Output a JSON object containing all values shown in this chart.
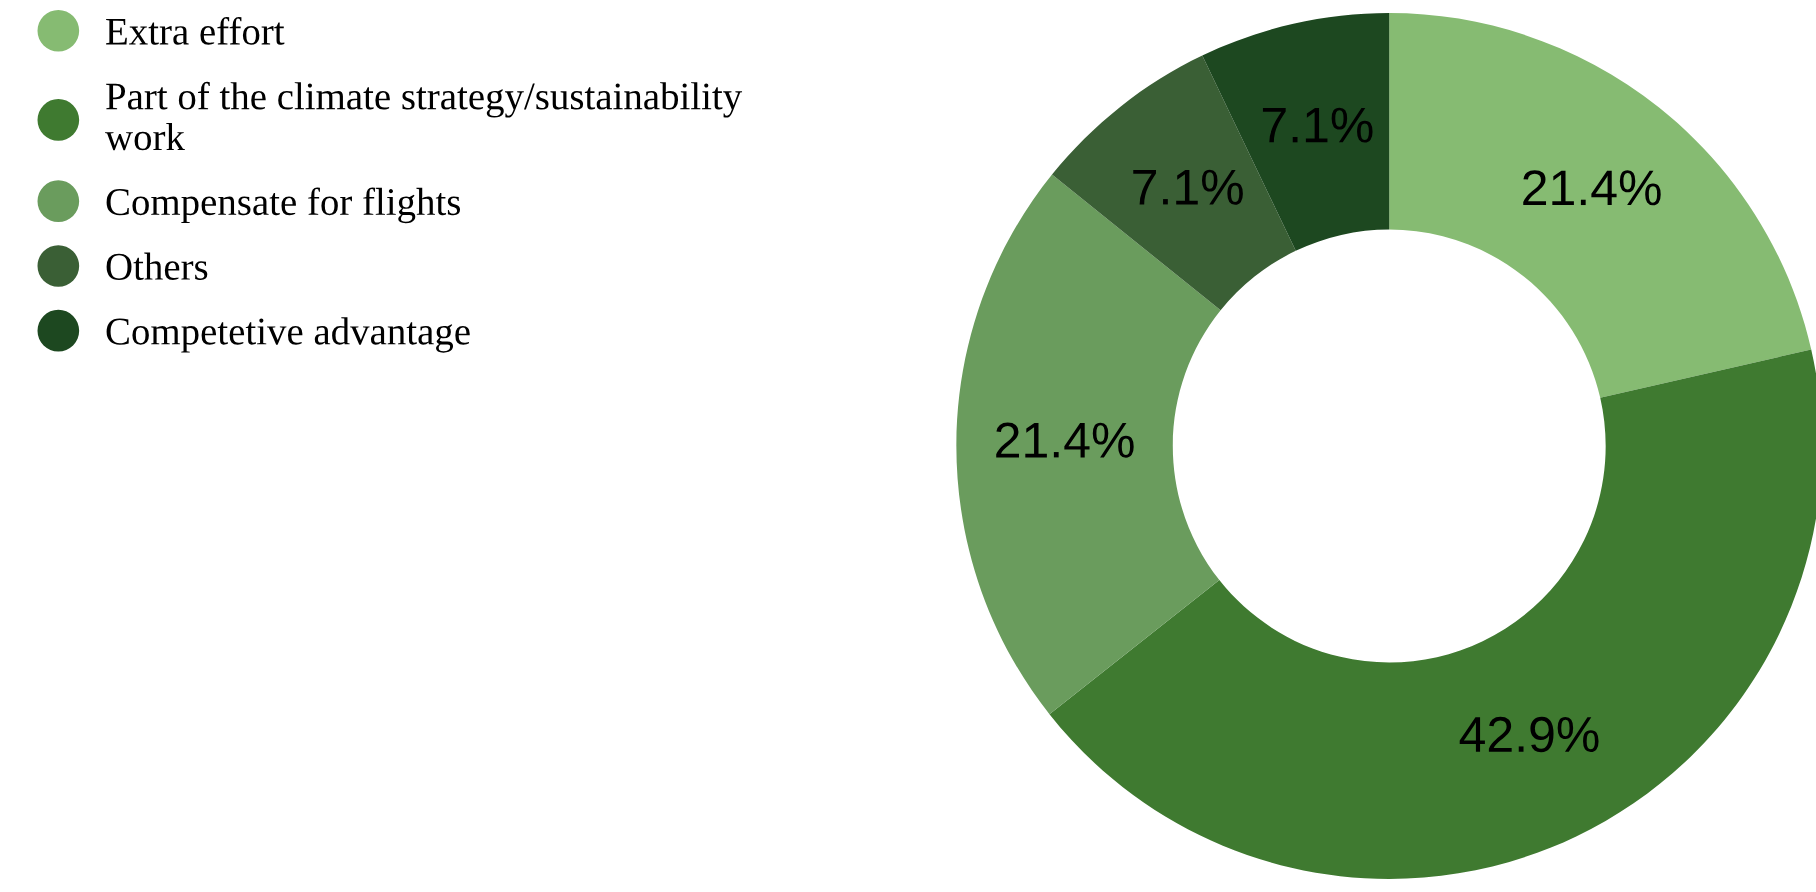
{
  "chart_data": {
    "type": "donut",
    "categories": [
      "Extra effort",
      "Part of the climate strategy/sustainability\nwork",
      "Compensate for flights",
      "Others",
      "Competetive advantage"
    ],
    "values": [
      21.4,
      42.9,
      21.4,
      7.1,
      7.1
    ],
    "colors": [
      "#86bb72",
      "#3f7a30",
      "#6a9c5d",
      "#3a5f35",
      "#1d4820"
    ],
    "value_labels": [
      "21.4%",
      "42.9%",
      "21.4%",
      "7.1%",
      "7.1%"
    ],
    "legend": "left"
  }
}
